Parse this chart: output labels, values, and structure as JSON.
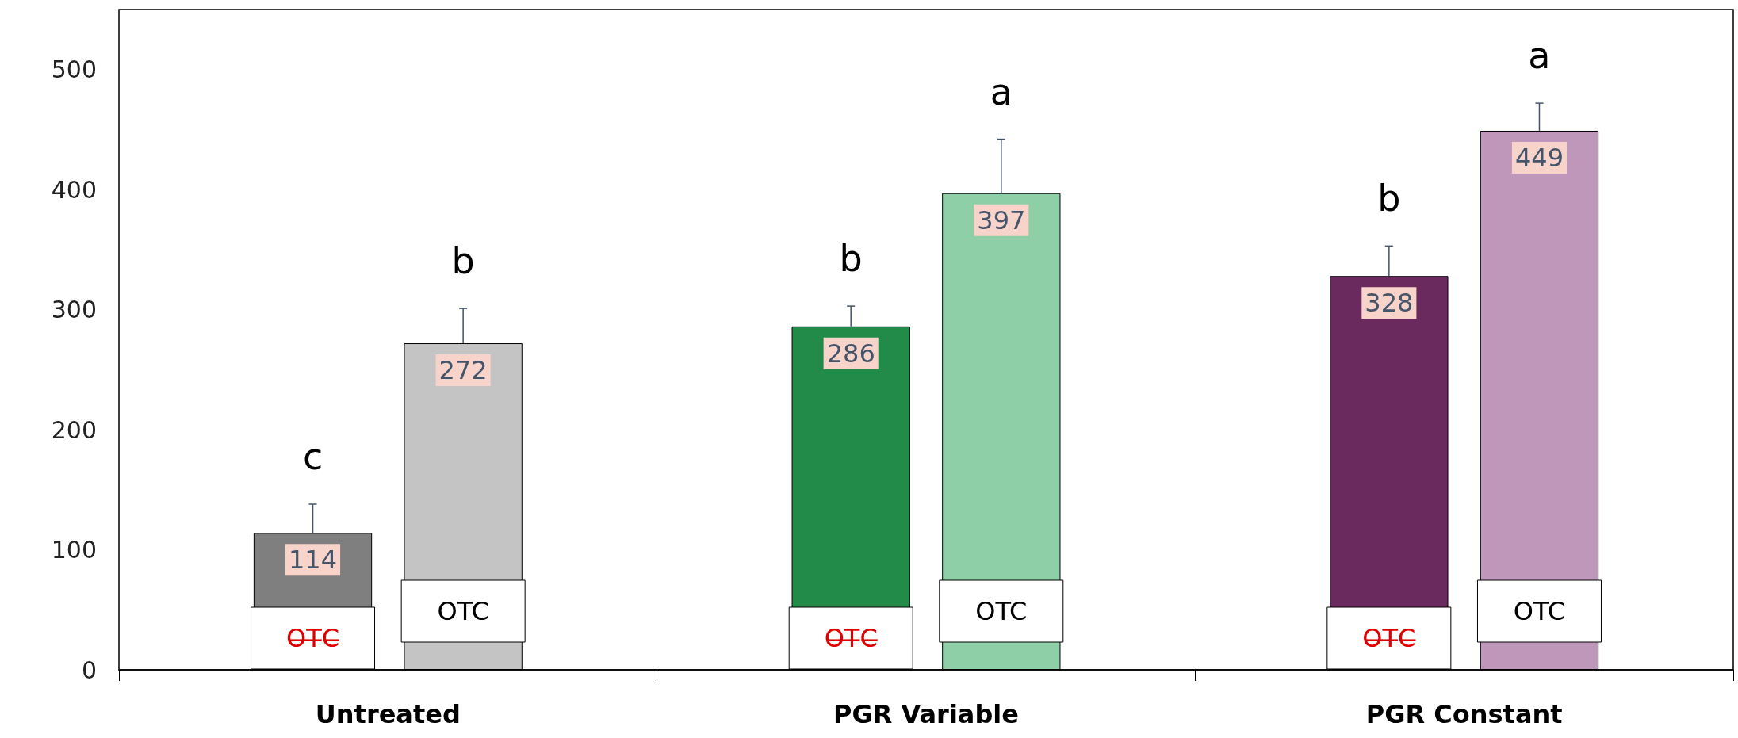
{
  "chart_data": {
    "type": "bar",
    "categories": [
      "Untreated",
      "PGR Variable",
      "PGR Constant"
    ],
    "series": [
      {
        "colors": [
          "#7f7f7f",
          "#228b4a",
          "#6a2a5e"
        ],
        "values": [
          114,
          286,
          328
        ],
        "errors": [
          [
            114,
            138
          ],
          [
            286,
            303
          ],
          [
            328,
            353
          ]
        ]
      },
      {
        "colors": [
          "#c4c4c4",
          "#8fcfa8",
          "#bf97bb"
        ],
        "values": [
          272,
          397,
          449
        ],
        "errors": [
          [
            272,
            301
          ],
          [
            397,
            442
          ],
          [
            449,
            472
          ]
        ]
      }
    ],
    "data_labels": true,
    "annotations": [
      "c",
      "b",
      "b",
      "a",
      "b",
      "a",
      "O̶T̶C̶",
      "OTC",
      "O̶T̶C̶",
      "OTC",
      "O̶T̶C̶",
      "OTC"
    ],
    "ylim": [
      0,
      550
    ],
    "yticks": [
      0,
      100,
      200,
      300,
      400,
      500
    ],
    "grid": false
  }
}
